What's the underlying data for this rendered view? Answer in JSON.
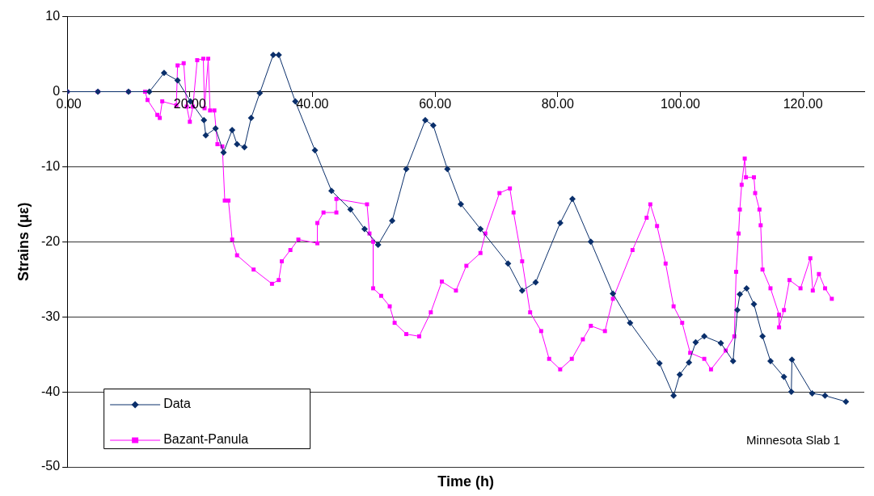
{
  "chart_data": {
    "type": "line",
    "xlabel": "Time (h)",
    "ylabel": "Strains (με)",
    "xlim": [
      0,
      130
    ],
    "xticks": [
      {
        "value": 0,
        "label": "0.00"
      },
      {
        "value": 20,
        "label": "20.00"
      },
      {
        "value": 40,
        "label": "40.00"
      },
      {
        "value": 60,
        "label": "60.00"
      },
      {
        "value": 80,
        "label": "80.00"
      },
      {
        "value": 100,
        "label": "100.00"
      },
      {
        "value": 120,
        "label": "120.00"
      }
    ],
    "ylim": [
      -50,
      10
    ],
    "yticks": [
      -50,
      -40,
      -30,
      -20,
      -10,
      0,
      10
    ],
    "grid": "y",
    "legend": "bottom left",
    "annotations": [
      "Minnesota Slab 1"
    ],
    "series": [
      {
        "name": "Data",
        "color": "#0a2f6b",
        "marker": "diamond",
        "x": [
          0,
          5,
          10,
          13.4,
          15.8,
          18,
          20.1,
          22.3,
          22.6,
          24.2,
          25.5,
          26.9,
          27.7,
          28.9,
          30,
          31.4,
          33.6,
          34.5,
          37.2,
          40.4,
          43.1,
          46.2,
          48.5,
          50.7,
          53,
          55.3,
          58.4,
          59.7,
          62,
          64.2,
          67.4,
          71.9,
          74.2,
          76.4,
          80.4,
          82.4,
          85.4,
          89,
          91.8,
          96.6,
          98.9,
          99.9,
          101.4,
          102.5,
          103.9,
          106.6,
          108.6,
          109.3,
          109.7,
          110.8,
          112,
          113.4,
          114.7,
          116.9,
          118.1,
          118.2,
          121.5,
          123.6,
          127
        ],
        "values": [
          0,
          0,
          0,
          0,
          2.5,
          1.5,
          -1.3,
          -3.8,
          -5.8,
          -4.9,
          -8.1,
          -5.1,
          -7,
          -7.4,
          -3.5,
          -0.2,
          4.9,
          4.9,
          -1.3,
          -7.8,
          -13.2,
          -15.7,
          -18.3,
          -20.4,
          -17.2,
          -10.3,
          -3.8,
          -4.5,
          -10.3,
          -15,
          -18.3,
          -22.9,
          -26.5,
          -25.4,
          -17.5,
          -14.3,
          -20,
          -26.9,
          -30.8,
          -36.2,
          -40.5,
          -37.7,
          -36.1,
          -33.4,
          -32.6,
          -33.5,
          -35.9,
          -29.1,
          -27,
          -26.2,
          -28.3,
          -32.6,
          -35.9,
          -38,
          -40,
          -35.7,
          -40.2,
          -40.5,
          -41.3
        ]
      },
      {
        "name": "Bazant-Panula",
        "color": "#ff00ff",
        "marker": "square",
        "x": [
          0,
          5,
          10,
          12.7,
          13.1,
          14.7,
          15.1,
          15.5,
          17.8,
          18,
          19,
          19.5,
          20,
          20.5,
          21.2,
          22.2,
          22.4,
          23,
          23.3,
          24,
          24.5,
          25.3,
          25.7,
          26.3,
          26.9,
          27.7,
          30.4,
          33.4,
          34.5,
          35,
          36.4,
          37.7,
          40.8,
          40.8,
          41.8,
          43.9,
          43.9,
          48.9,
          49.3,
          49.9,
          49.9,
          51.2,
          52.6,
          53.4,
          55.3,
          57.4,
          59.3,
          61.1,
          63.4,
          65.1,
          67.4,
          68.2,
          70.5,
          72.2,
          72.8,
          74.2,
          75.5,
          77.3,
          78.6,
          80.4,
          82.3,
          84.1,
          85.4,
          87.7,
          89,
          92.2,
          94.5,
          95.1,
          96.2,
          97.6,
          98.9,
          100.3,
          101.6,
          103.9,
          105,
          107.4,
          108.8,
          109.1,
          109.5,
          109.7,
          110,
          110.5,
          110.7,
          112,
          112.2,
          112.9,
          113.1,
          113.4,
          114.7,
          116.1,
          116.1,
          116.9,
          117.8,
          119.6,
          121.2,
          121.6,
          122.6,
          123.6,
          124.7
        ],
        "values": [
          0,
          0,
          0,
          0,
          -1.1,
          -3.1,
          -3.5,
          -1.3,
          -1.8,
          3.5,
          3.8,
          -2,
          -4,
          -2,
          4.2,
          4.4,
          -2.2,
          4.4,
          -2.5,
          -2.5,
          -7,
          -7.3,
          -14.5,
          -14.5,
          -19.7,
          -21.8,
          -23.7,
          -25.6,
          -25.1,
          -22.6,
          -21.1,
          -19.7,
          -20.2,
          -17.5,
          -16.1,
          -16.1,
          -14.3,
          -15,
          -18.9,
          -20,
          -26.2,
          -27.2,
          -28.6,
          -30.8,
          -32.3,
          -32.6,
          -29.4,
          -25.3,
          -26.5,
          -23.2,
          -21.5,
          -18.9,
          -13.5,
          -12.9,
          -16.1,
          -22.6,
          -29.4,
          -31.9,
          -35.6,
          -37,
          -35.6,
          -33,
          -31.2,
          -31.9,
          -27.6,
          -21.1,
          -16.8,
          -15,
          -17.9,
          -22.9,
          -28.6,
          -30.8,
          -34.8,
          -35.6,
          -37,
          -34.5,
          -32.6,
          -24,
          -18.9,
          -15.7,
          -12.4,
          -8.9,
          -11.4,
          -11.4,
          -13.5,
          -15.7,
          -17.8,
          -23.7,
          -26.2,
          -29.7,
          -31.4,
          -29.1,
          -25.1,
          -26.2,
          -22.2,
          -26.5,
          -24.3,
          -26.2,
          -27.6
        ]
      }
    ]
  }
}
